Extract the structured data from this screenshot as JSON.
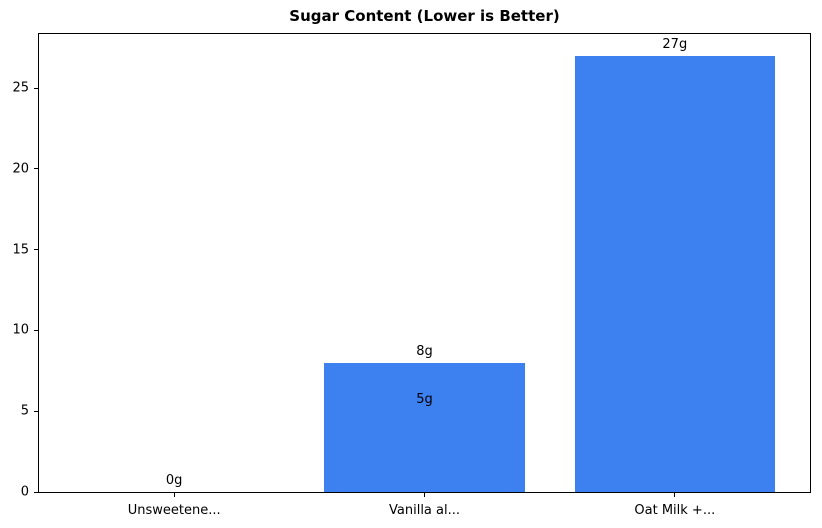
{
  "chart_data": {
    "type": "bar",
    "title": "Sugar Content (Lower is Better)",
    "categories": [
      "Unsweetene...",
      "Vanilla al...",
      "Oat Milk +..."
    ],
    "values": [
      0,
      8,
      27
    ],
    "bar_labels": [
      "0g",
      "8g",
      "27g"
    ],
    "annotations": [
      {
        "text": "5g",
        "category_index": 1,
        "y": 5
      }
    ],
    "yticks": [
      0,
      5,
      10,
      15,
      20,
      25
    ],
    "ylim": [
      0,
      28.35
    ],
    "xlabel": "",
    "ylabel": "",
    "grid": false,
    "legend_position": "none",
    "bar_color": "#3d80f0",
    "axis_color": "#000000",
    "text_color": "#000000",
    "background_color": "#ffffff"
  }
}
